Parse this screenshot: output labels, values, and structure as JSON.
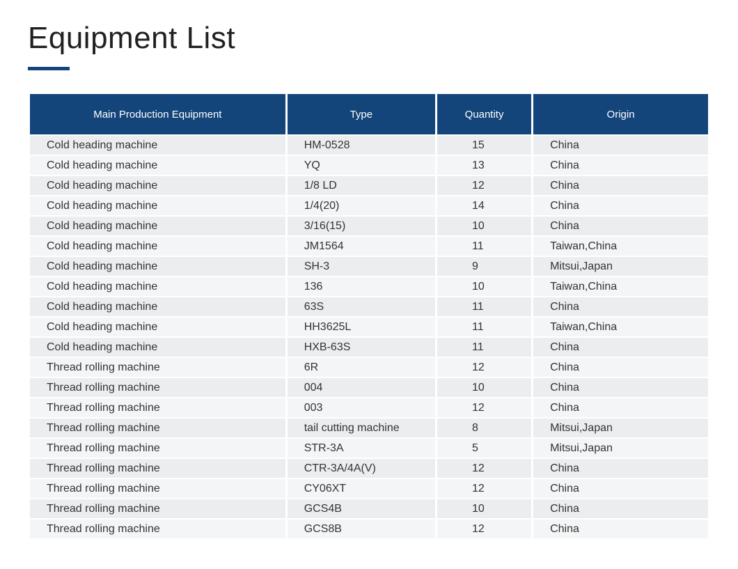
{
  "page": {
    "title": "Equipment List",
    "title_color": "#212121",
    "title_fontsize": 44,
    "underline_color": "#13457a",
    "background_color": "#ffffff"
  },
  "table": {
    "type": "table",
    "header_background": "#13457a",
    "header_text_color": "#ffffff",
    "header_fontsize": 15,
    "body_fontsize": 16,
    "body_text_color": "#333333",
    "row_odd_background": "#ebedee",
    "row_even_background": "#f3f5f6",
    "border_spacing_h": 3,
    "border_spacing_v": 2,
    "columns": [
      {
        "label": "Main Production Equipment",
        "width_pct": 38,
        "align": "left"
      },
      {
        "label": "Type",
        "width_pct": 22,
        "align": "left"
      },
      {
        "label": "Quantity",
        "width_pct": 14,
        "align": "left"
      },
      {
        "label": "Origin",
        "width_pct": 26,
        "align": "left"
      }
    ],
    "rows": [
      [
        "Cold heading machine",
        "HM-0528",
        "15",
        "China"
      ],
      [
        "Cold heading machine",
        "YQ",
        "13",
        "China"
      ],
      [
        "Cold heading machine",
        "1/8 LD",
        "12",
        "China"
      ],
      [
        "Cold heading machine",
        "1/4(20)",
        "14",
        "China"
      ],
      [
        "Cold heading machine",
        "3/16(15)",
        "10",
        "China"
      ],
      [
        "Cold heading machine",
        "JM1564",
        "11",
        "Taiwan,China"
      ],
      [
        "Cold heading machine",
        "SH-3",
        "9",
        "Mitsui,Japan"
      ],
      [
        "Cold heading machine",
        "136",
        "10",
        "Taiwan,China"
      ],
      [
        "Cold heading machine",
        "63S",
        "11",
        "China"
      ],
      [
        "Cold heading machine",
        "HH3625L",
        "11",
        "Taiwan,China"
      ],
      [
        "Cold heading machine",
        "HXB-63S",
        "11",
        "China"
      ],
      [
        "Thread rolling machine",
        "6R",
        "12",
        "China"
      ],
      [
        "Thread rolling machine",
        "004",
        "10",
        "China"
      ],
      [
        "Thread rolling machine",
        "003",
        "12",
        "China"
      ],
      [
        "Thread rolling machine",
        "tail cutting machine",
        "8",
        "Mitsui,Japan"
      ],
      [
        "Thread rolling machine",
        "STR-3A",
        "5",
        "Mitsui,Japan"
      ],
      [
        "Thread rolling machine",
        "CTR-3A/4A(V)",
        "12",
        "China"
      ],
      [
        "Thread rolling machine",
        "CY06XT",
        "12",
        "China"
      ],
      [
        "Thread rolling machine",
        "GCS4B",
        "10",
        "China"
      ],
      [
        "Thread rolling machine",
        "GCS8B",
        "12",
        "China"
      ]
    ]
  }
}
